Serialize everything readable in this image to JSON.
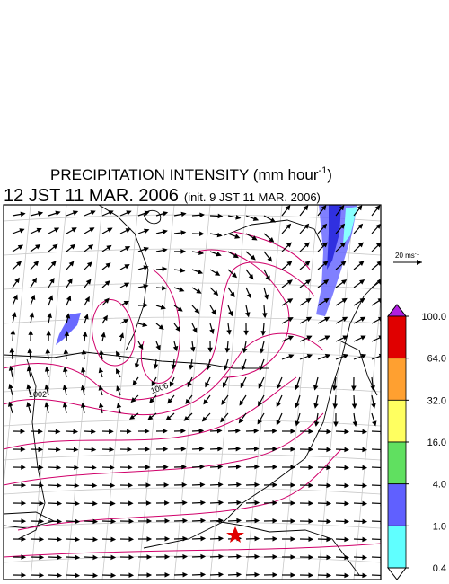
{
  "header": {
    "title": "PRECIPITATION INTENSITY (mm hour",
    "title_exponent": "-1",
    "title_close": ")",
    "valid_time": "12 JST 11 MAR. 2006",
    "init_time": "(init. 9 JST 11 MAR. 2006)"
  },
  "map": {
    "contour_labels": [
      "1002",
      "1006"
    ]
  },
  "vector_legend": {
    "label": "20 ms",
    "exponent": "-1"
  },
  "colorbar": {
    "levels": [
      {
        "value": 100,
        "label": "100.0"
      },
      {
        "value": 64,
        "label": "64.0"
      },
      {
        "value": 32,
        "label": "32.0"
      },
      {
        "value": 16,
        "label": "16.0"
      },
      {
        "value": 4,
        "label": "4.0"
      },
      {
        "value": 1,
        "label": "1.0"
      },
      {
        "value": 0.4,
        "label": "0.4"
      }
    ],
    "colors": [
      "#e00000",
      "#ffa030",
      "#ffff60",
      "#60e060",
      "#6060ff",
      "#60ffff"
    ],
    "over_color": "#b020e0",
    "under_color": "#ffffff"
  }
}
